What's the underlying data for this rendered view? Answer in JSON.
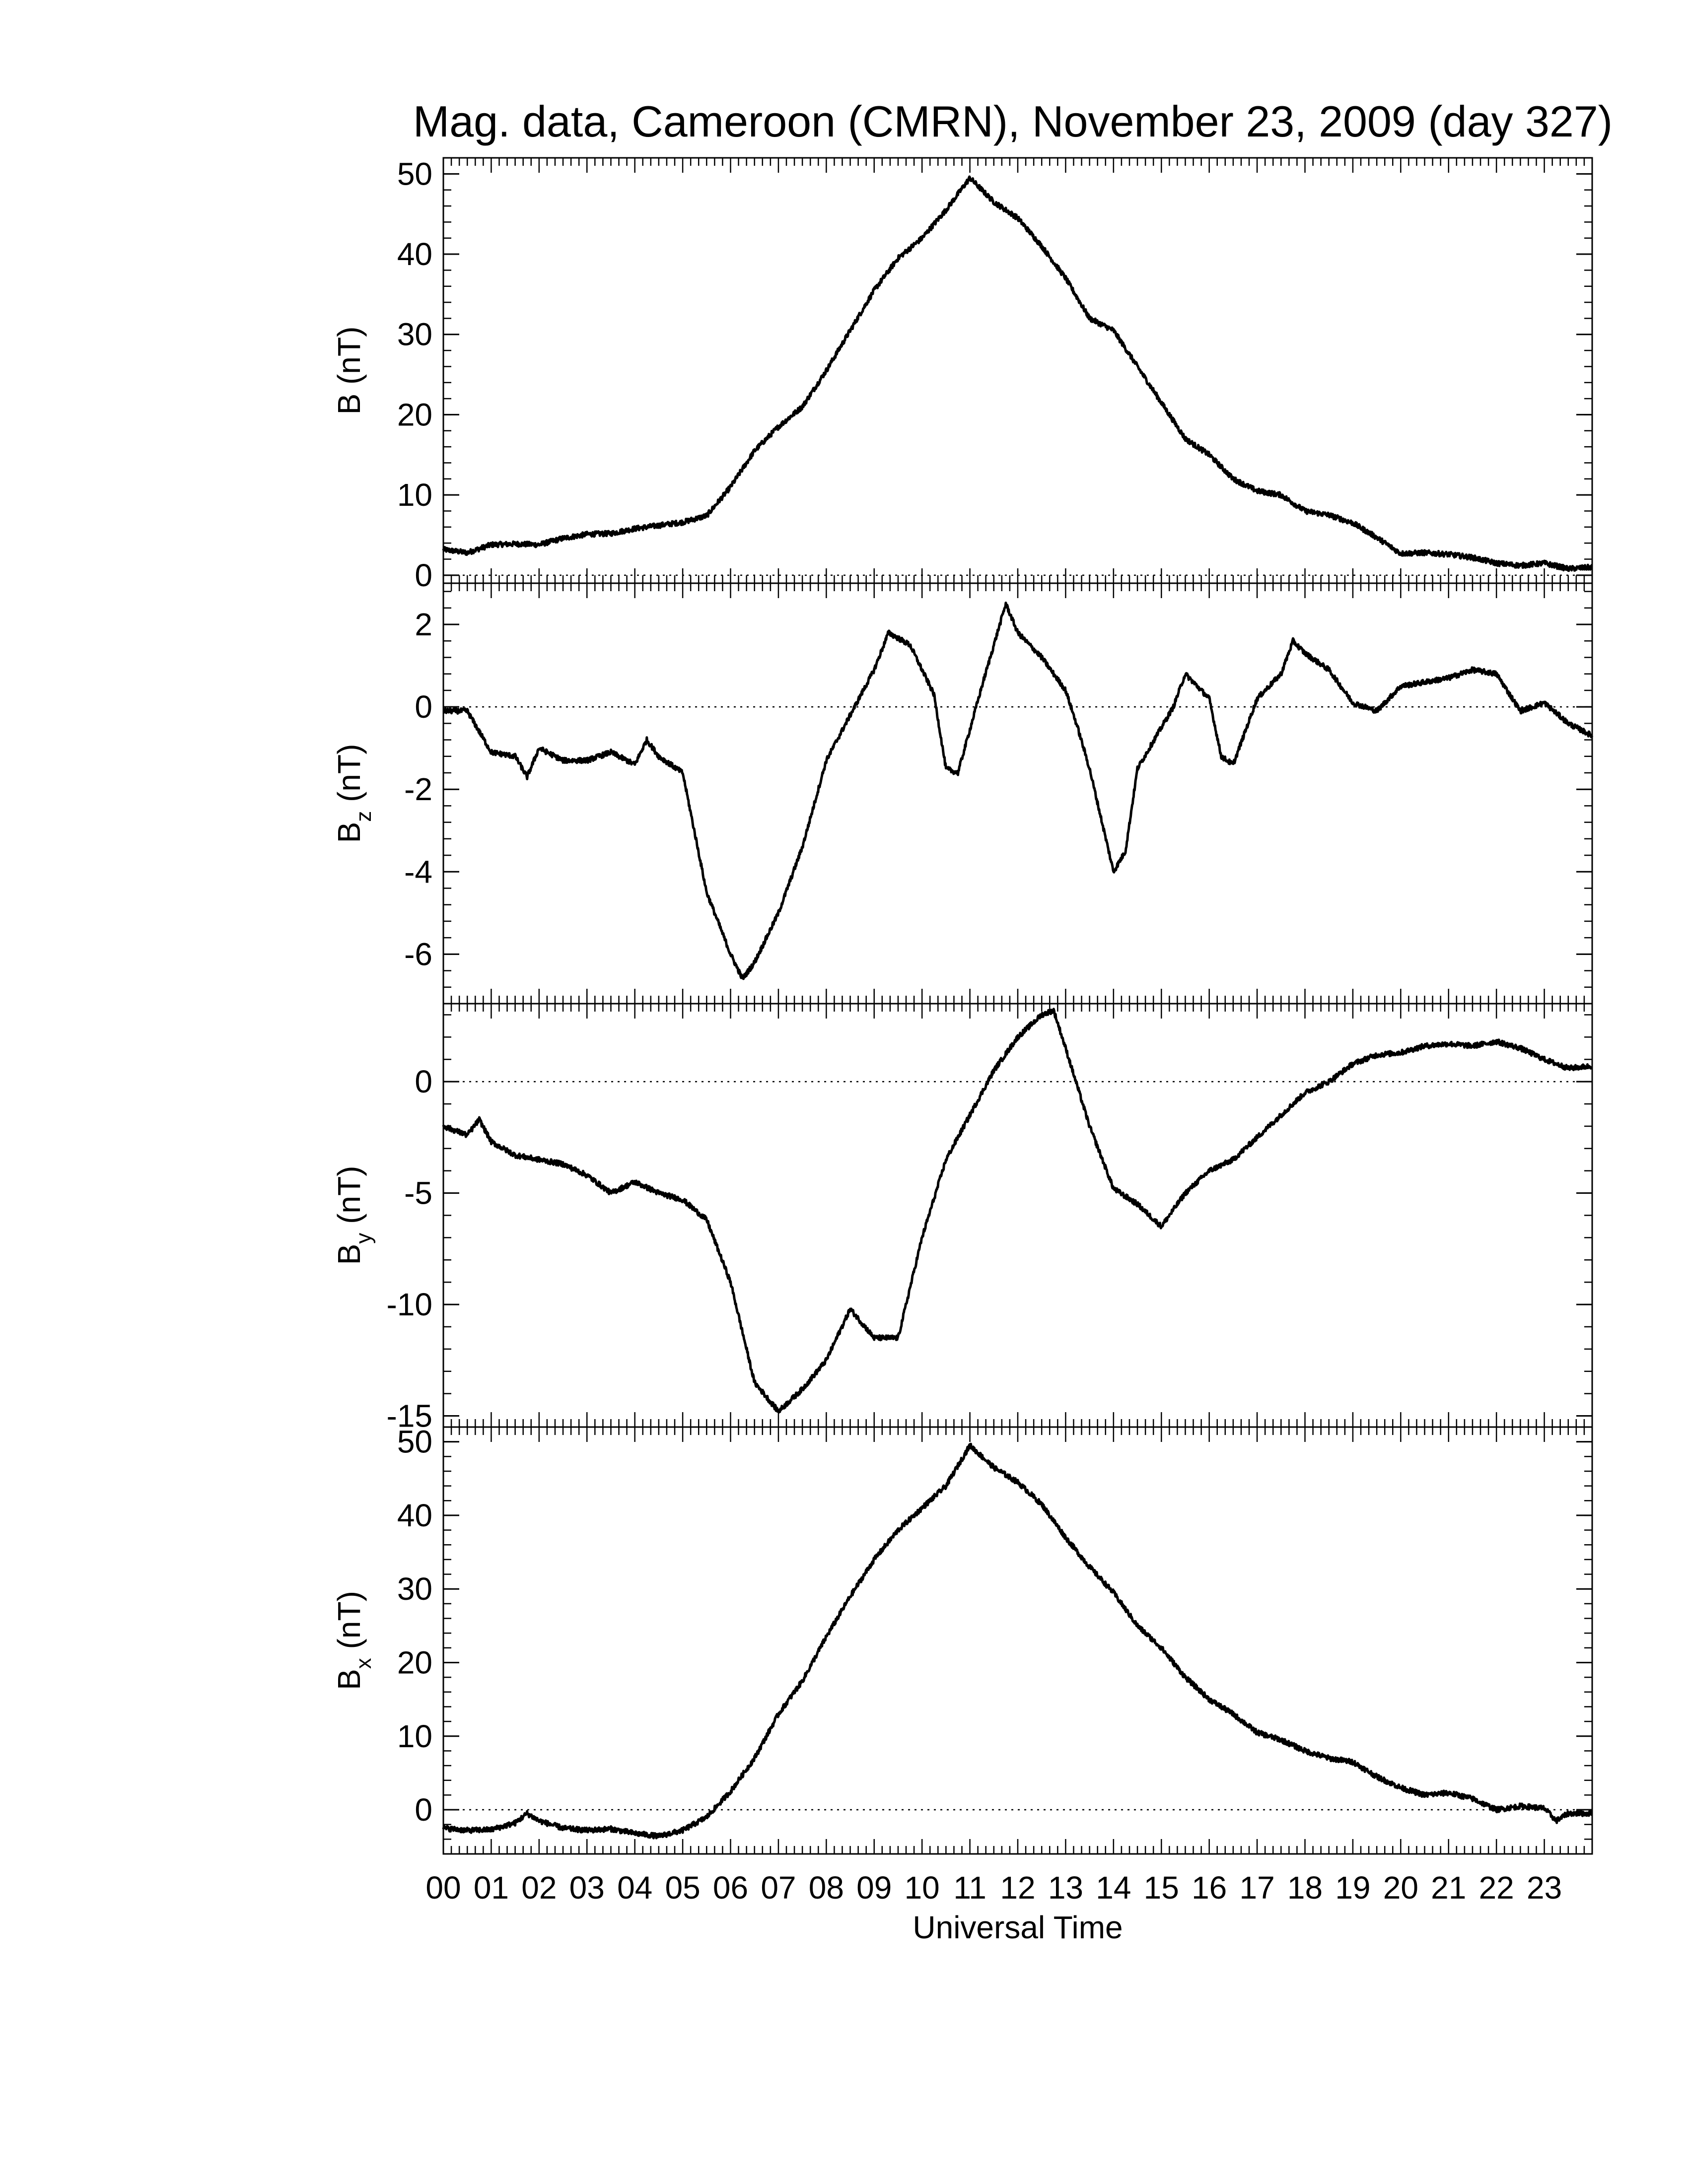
{
  "title": "Mag. data, Cameroon (CMRN), November 23, 2009 (day 327)",
  "chart_data": {
    "type": "line",
    "title": "Mag. data, Cameroon (CMRN), November 23, 2009 (day 327)",
    "xlabel": "Universal Time",
    "xlim": [
      0,
      24
    ],
    "xticks": [
      "00",
      "01",
      "02",
      "03",
      "04",
      "05",
      "06",
      "07",
      "08",
      "09",
      "10",
      "11",
      "12",
      "13",
      "14",
      "15",
      "16",
      "17",
      "18",
      "19",
      "20",
      "21",
      "22",
      "23"
    ],
    "grid": false,
    "panels": [
      {
        "id": "B",
        "ylabel_main": "B",
        "ylabel_sub": "",
        "ylabel_unit": "(nT)",
        "ylim": [
          -1,
          52
        ],
        "yticks": [
          0,
          10,
          20,
          30,
          40,
          50
        ],
        "zero_line": true,
        "series": [
          {
            "x": [
              0,
              0.5,
              1,
              1.5,
              2,
              2.5,
              3,
              3.5,
              4,
              4.5,
              5,
              5.5,
              6,
              6.5,
              7,
              7.5,
              8,
              8.5,
              9,
              9.5,
              10,
              10.5,
              11,
              11.5,
              12,
              12.5,
              13,
              13.5,
              14,
              14.5,
              15,
              15.5,
              16,
              16.5,
              17,
              17.5,
              18,
              18.5,
              19,
              19.5,
              20,
              20.5,
              21,
              21.5,
              22,
              22.5,
              23,
              23.5,
              24
            ],
            "y": [
              3.2,
              2.8,
              3.8,
              3.9,
              3.8,
              4.6,
              5.1,
              5.2,
              5.8,
              6.2,
              6.6,
              7.4,
              11,
              15.5,
              18.5,
              21,
              25.5,
              30.5,
              35.5,
              39.5,
              42,
              45.5,
              49.5,
              46.5,
              44.5,
              41,
              37,
              32,
              30.5,
              26,
              21.5,
              17,
              15,
              12,
              10.5,
              10,
              8,
              7.5,
              6.5,
              4.7,
              2.7,
              2.8,
              2.6,
              2.2,
              1.5,
              1.2,
              1.5,
              0.8,
              1
            ]
          }
        ]
      },
      {
        "id": "Bz",
        "ylabel_main": "B",
        "ylabel_sub": "z",
        "ylabel_unit": "(nT)",
        "ylim": [
          -7.2,
          3
        ],
        "yticks": [
          -6,
          -4,
          -2,
          0,
          2
        ],
        "zero_line": true,
        "series": [
          {
            "x": [
              0,
              0.5,
              1,
              1.5,
              1.75,
              2,
              2.5,
              3,
              3.5,
              4,
              4.25,
              4.5,
              5,
              5.5,
              6,
              6.25,
              6.5,
              7,
              7.5,
              8,
              8.5,
              9,
              9.3,
              9.75,
              10.25,
              10.5,
              10.75,
              11.25,
              11.75,
              12,
              12.5,
              13,
              13.25,
              13.5,
              14,
              14.25,
              14.5,
              15,
              15.25,
              15.5,
              16,
              16.25,
              16.5,
              17,
              17.5,
              17.75,
              18,
              18.5,
              19,
              19.5,
              20,
              20.5,
              21,
              21.5,
              22,
              22.5,
              23,
              23.5,
              24
            ],
            "y": [
              -0.1,
              -0.1,
              -1.1,
              -1.2,
              -1.7,
              -1,
              -1.3,
              -1.3,
              -1.1,
              -1.4,
              -0.8,
              -1.2,
              -1.6,
              -4.5,
              -6,
              -6.6,
              -6.2,
              -5,
              -3.4,
              -1.3,
              -0.2,
              0.9,
              1.8,
              1.5,
              0.3,
              -1.5,
              -1.6,
              0.5,
              2.5,
              1.8,
              1.2,
              0.4,
              -0.5,
              -1.5,
              -4,
              -3.5,
              -1.5,
              -0.5,
              0,
              0.8,
              0.2,
              -1.2,
              -1.4,
              0.2,
              0.8,
              1.6,
              1.3,
              0.9,
              0.1,
              -0.1,
              0.5,
              0.6,
              0.7,
              0.9,
              0.8,
              -0.1,
              0.1,
              -0.4,
              -0.7
            ]
          }
        ]
      },
      {
        "id": "By",
        "ylabel_main": "B",
        "ylabel_sub": "y",
        "ylabel_unit": "(nT)",
        "ylim": [
          -15.5,
          3.5
        ],
        "yticks": [
          -15,
          -10,
          -5,
          0
        ],
        "zero_line": true,
        "series": [
          {
            "x": [
              0,
              0.5,
              0.75,
              1,
              1.5,
              2,
              2.5,
              3,
              3.5,
              4,
              4.5,
              5,
              5.5,
              6,
              6.5,
              7,
              7.5,
              8,
              8.5,
              9,
              9.5,
              10,
              10.5,
              11,
              11.5,
              12,
              12.5,
              12.75,
              13,
              13.5,
              14,
              14.5,
              15,
              15.5,
              16,
              16.5,
              17,
              17.5,
              18,
              18.5,
              19,
              19.5,
              20,
              20.5,
              21,
              21.5,
              22,
              22.5,
              23,
              23.5,
              24
            ],
            "y": [
              -2,
              -2.4,
              -1.7,
              -2.7,
              -3.3,
              -3.5,
              -3.7,
              -4.2,
              -5,
              -4.5,
              -5,
              -5.3,
              -6.2,
              -9,
              -13.5,
              -14.8,
              -13.8,
              -12.5,
              -10.2,
              -11.5,
              -11.5,
              -7,
              -3.5,
              -1.5,
              0.5,
              2,
              3,
              3.2,
              1.5,
              -2,
              -4.8,
              -5.5,
              -6.5,
              -5,
              -4,
              -3.5,
              -2.5,
              -1.5,
              -0.5,
              0,
              0.8,
              1.2,
              1.3,
              1.6,
              1.7,
              1.6,
              1.8,
              1.5,
              1,
              0.6,
              0.7
            ]
          }
        ]
      },
      {
        "id": "Bx",
        "ylabel_main": "B",
        "ylabel_sub": "x",
        "ylabel_unit": "(nT)",
        "ylim": [
          -6,
          52
        ],
        "yticks": [
          0,
          10,
          20,
          30,
          40,
          50
        ],
        "zero_line": true,
        "series": [
          {
            "x": [
              0,
              0.5,
              1,
              1.5,
              1.75,
              2,
              2.5,
              3,
              3.5,
              4,
              4.5,
              5,
              5.5,
              6,
              6.5,
              7,
              7.5,
              8,
              8.5,
              9,
              9.5,
              10,
              10.5,
              11,
              11.5,
              12,
              12.5,
              13,
              13.5,
              14,
              14.5,
              15,
              15.5,
              16,
              16.5,
              17,
              17.5,
              18,
              18.5,
              19,
              19.5,
              20,
              20.5,
              21,
              21.5,
              22,
              22.5,
              23,
              23.25,
              23.5,
              24
            ],
            "y": [
              -2.5,
              -2.8,
              -2.7,
              -1.8,
              -0.5,
              -1.5,
              -2.5,
              -2.8,
              -2.6,
              -3.2,
              -3.6,
              -2.8,
              -1,
              2.5,
              7,
              13,
              17.5,
              23.5,
              29,
              34,
              38,
              41,
              44,
              49.5,
              46.5,
              44.5,
              41.5,
              37,
              33,
              29.5,
              25,
              22,
              18,
              15,
              13,
              10.5,
              9.5,
              8,
              7,
              6.5,
              4.5,
              3,
              2,
              2.3,
              1.5,
              0,
              0.5,
              0.2,
              -1.5,
              -0.5,
              -0.5
            ]
          }
        ]
      }
    ]
  }
}
